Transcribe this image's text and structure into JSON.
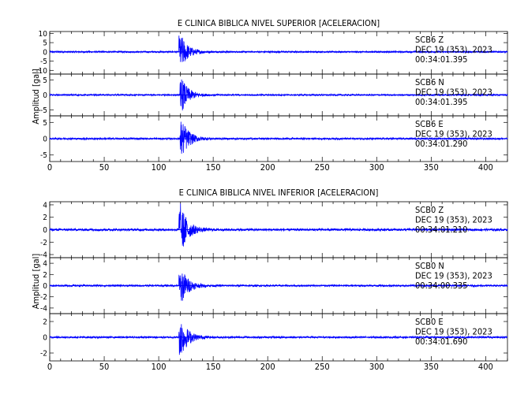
{
  "chart_data": [
    {
      "type": "line",
      "title": "E CLINICA BIBLICA NIVEL SUPERIOR [ACELERACION]",
      "ylabel": "Amplitud [gal]",
      "xlim": [
        0,
        420
      ],
      "x_ticks": [
        "0",
        "50",
        "100",
        "150",
        "200",
        "250",
        "300",
        "350",
        "400"
      ],
      "series_color": "#0000ff",
      "panels": [
        {
          "name": "SCB6 Z",
          "ylim": [
            -12,
            11
          ],
          "y_ticks": [
            [
              "10",
              10
            ],
            [
              "5",
              5
            ],
            [
              "0",
              0
            ],
            [
              "-5",
              -5
            ],
            [
              "-10",
              -10
            ]
          ],
          "label_lines": [
            "SCB6    Z",
            "DEC  19  (353),  2023",
            "00:34:01.395"
          ],
          "onset_s": 118.5,
          "peak_gal": 10.5
        },
        {
          "name": "SCB6 N",
          "ylim": [
            -7,
            7
          ],
          "y_ticks": [
            [
              "5",
              5
            ],
            [
              "0",
              0
            ],
            [
              "-5",
              -5
            ]
          ],
          "label_lines": [
            "SCB6    N",
            "DEC  19  (353),  2023",
            "00:34:01.395"
          ],
          "onset_s": 119.5,
          "peak_gal": 6.0
        },
        {
          "name": "SCB6 E",
          "ylim": [
            -7,
            7
          ],
          "y_ticks": [
            [
              "5",
              5
            ],
            [
              "0",
              0
            ],
            [
              "-5",
              -5
            ]
          ],
          "label_lines": [
            "SCB6    E",
            "DEC  19  (353),  2023",
            "00:34:01.290"
          ],
          "onset_s": 119.5,
          "peak_gal": 6.5
        }
      ]
    },
    {
      "type": "line",
      "title": "E CLINICA BIBLICA NIVEL INFERIOR [ACELERACION]",
      "ylabel": "Amplitud [gal]",
      "xlim": [
        0,
        420
      ],
      "x_ticks": [
        "0",
        "50",
        "100",
        "150",
        "200",
        "250",
        "300",
        "350",
        "400"
      ],
      "series_color": "#0000ff",
      "panels": [
        {
          "name": "SCB0 Z",
          "ylim": [
            -4.5,
            4.5
          ],
          "y_ticks": [
            [
              "4",
              4
            ],
            [
              "2",
              2
            ],
            [
              "0",
              0
            ],
            [
              "-2",
              -2
            ],
            [
              "-4",
              -4
            ]
          ],
          "label_lines": [
            "SCB0    Z",
            "DEC  19  (353),  2023",
            "00:34:01.210"
          ],
          "onset_s": 118.5,
          "peak_gal": 4.4
        },
        {
          "name": "SCB0 N",
          "ylim": [
            -5,
            5
          ],
          "y_ticks": [
            [
              "4",
              4
            ],
            [
              "2",
              2
            ],
            [
              "0",
              0
            ],
            [
              "-2",
              -2
            ],
            [
              "-4",
              -4
            ]
          ],
          "label_lines": [
            "SCB0    N",
            "DEC  19  (353),  2023",
            "00:34:00.335"
          ],
          "onset_s": 118.5,
          "peak_gal": 3.8
        },
        {
          "name": "SCB0 E",
          "ylim": [
            -3,
            3
          ],
          "y_ticks": [
            [
              "2",
              2
            ],
            [
              "0",
              0
            ],
            [
              "-2",
              -2
            ]
          ],
          "label_lines": [
            "SCB0    E",
            "DEC  19  (353),  2023",
            "00:34:01.690"
          ],
          "onset_s": 118.5,
          "peak_gal": 2.8
        }
      ]
    }
  ]
}
